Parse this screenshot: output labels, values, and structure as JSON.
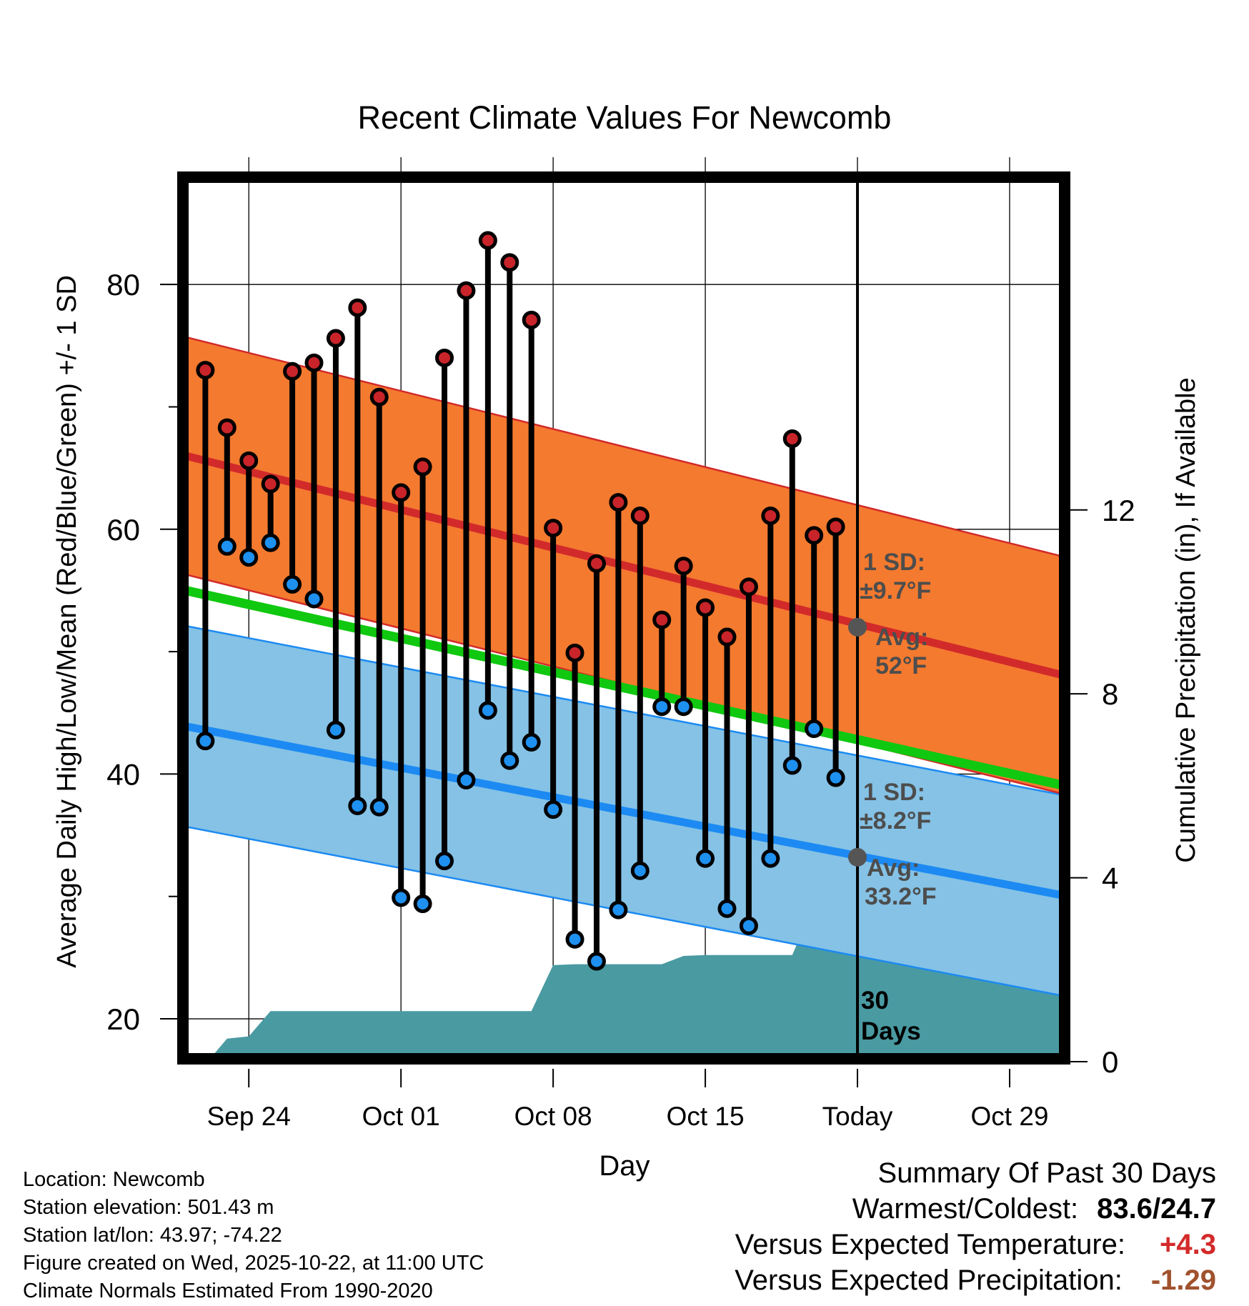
{
  "chart_data": {
    "type": "bar",
    "title": "Recent Climate Values For Newcomb",
    "xlabel": "Day",
    "ylabel": "Average Daily High/Low/Mean (Red/Blue/Green) +/- 1 SD",
    "y2label": "Cumulative Precipitation (in), If Available",
    "ylim": [
      16.5,
      89
    ],
    "y2lim": [
      0,
      19.3
    ],
    "yticks": [
      "20",
      "40",
      "60",
      "80"
    ],
    "y2ticks": [
      "0",
      "4",
      "8",
      "12"
    ],
    "xlim": [
      -2.9,
      37.4
    ],
    "xticks": [
      {
        "day": 0,
        "label": "Sep 24"
      },
      {
        "day": 7,
        "label": "Oct 01"
      },
      {
        "day": 14,
        "label": "Oct 08"
      },
      {
        "day": 21,
        "label": "Oct 15"
      },
      {
        "day": 28,
        "label": "Today"
      },
      {
        "day": 35,
        "label": "Oct 29"
      }
    ],
    "today_day": 28,
    "days": [
      -2,
      -1,
      0,
      1,
      2,
      3,
      4,
      5,
      6,
      7,
      8,
      9,
      10,
      11,
      12,
      13,
      14,
      15,
      16,
      17,
      18,
      19,
      20,
      21,
      22,
      23,
      24,
      25,
      26,
      27
    ],
    "highs": [
      73.0,
      68.3,
      65.6,
      63.7,
      72.9,
      73.6,
      75.6,
      78.1,
      70.8,
      63.0,
      65.1,
      74.0,
      79.5,
      83.6,
      81.8,
      77.1,
      60.1,
      49.9,
      57.2,
      62.2,
      61.1,
      52.6,
      57.0,
      53.6,
      51.2,
      55.3,
      61.1,
      67.4,
      59.5,
      60.2
    ],
    "lows": [
      42.7,
      58.6,
      57.7,
      58.9,
      55.5,
      54.3,
      43.6,
      37.4,
      37.3,
      29.9,
      29.4,
      32.9,
      39.5,
      45.2,
      41.1,
      42.6,
      37.1,
      26.5,
      24.7,
      28.9,
      32.1,
      45.5,
      45.5,
      33.1,
      29.0,
      27.6,
      33.1,
      40.7,
      43.7,
      39.7
    ],
    "normal_high": {
      "start": 66.0,
      "end": 48.1,
      "sd_label": "1 SD:",
      "sd_value": "±9.7°F",
      "avg_label": "Avg:",
      "avg_value": "52°F",
      "marker": 52.0
    },
    "normal_low": {
      "start": 43.9,
      "end": 30.1,
      "sd_label": "1 SD:",
      "sd_value": "±8.2°F",
      "avg_label": "Avg:",
      "avg_value": "33.2°F",
      "marker": 33.2
    },
    "normal_mean": {
      "start": 55.0,
      "end": 39.1
    },
    "high_sd": 9.7,
    "low_sd": 8.2,
    "precip_days": [
      -1.9,
      -1.0,
      0,
      1,
      13,
      14,
      15,
      16,
      17,
      18,
      19,
      20,
      21,
      22,
      23,
      24,
      25,
      25.8,
      26.5,
      37.4
    ],
    "precip_values": [
      0,
      0.5,
      0.55,
      1.1,
      1.1,
      2.1,
      2.12,
      2.12,
      2.12,
      2.12,
      2.12,
      2.3,
      2.32,
      2.32,
      2.32,
      2.32,
      2.32,
      3.2,
      3.25,
      3.25
    ],
    "precip_label": [
      "30",
      "Days"
    ],
    "colors": {
      "high_band": "#f47a2f",
      "high_line": "#d22a2a",
      "low_band": "#85c2e6",
      "low_line": "#1c8af2",
      "mean_line": "#10c810",
      "precip": "#4a9aa2",
      "high_dot": "#c8242a",
      "low_dot": "#1e90f0",
      "annotation": "#4d4d4d"
    }
  },
  "location_info": {
    "location": "Location: Newcomb",
    "elevation": "Station elevation: 501.43 m",
    "latlon": "Station lat/lon: 43.97; -74.22",
    "created": "Figure created on Wed, 2025-10-22, at 11:00 UTC",
    "normals": "Climate Normals Estimated From 1990-2020"
  },
  "summary": {
    "title": "Summary Of Past 30 Days",
    "warm_label": "Warmest/Coldest:",
    "warm_value": "83.6/24.7",
    "temp_label": "Versus Expected Temperature:",
    "temp_value": "+4.3",
    "precip_label": "Versus Expected Precipitation:",
    "precip_value": "-1.29"
  }
}
